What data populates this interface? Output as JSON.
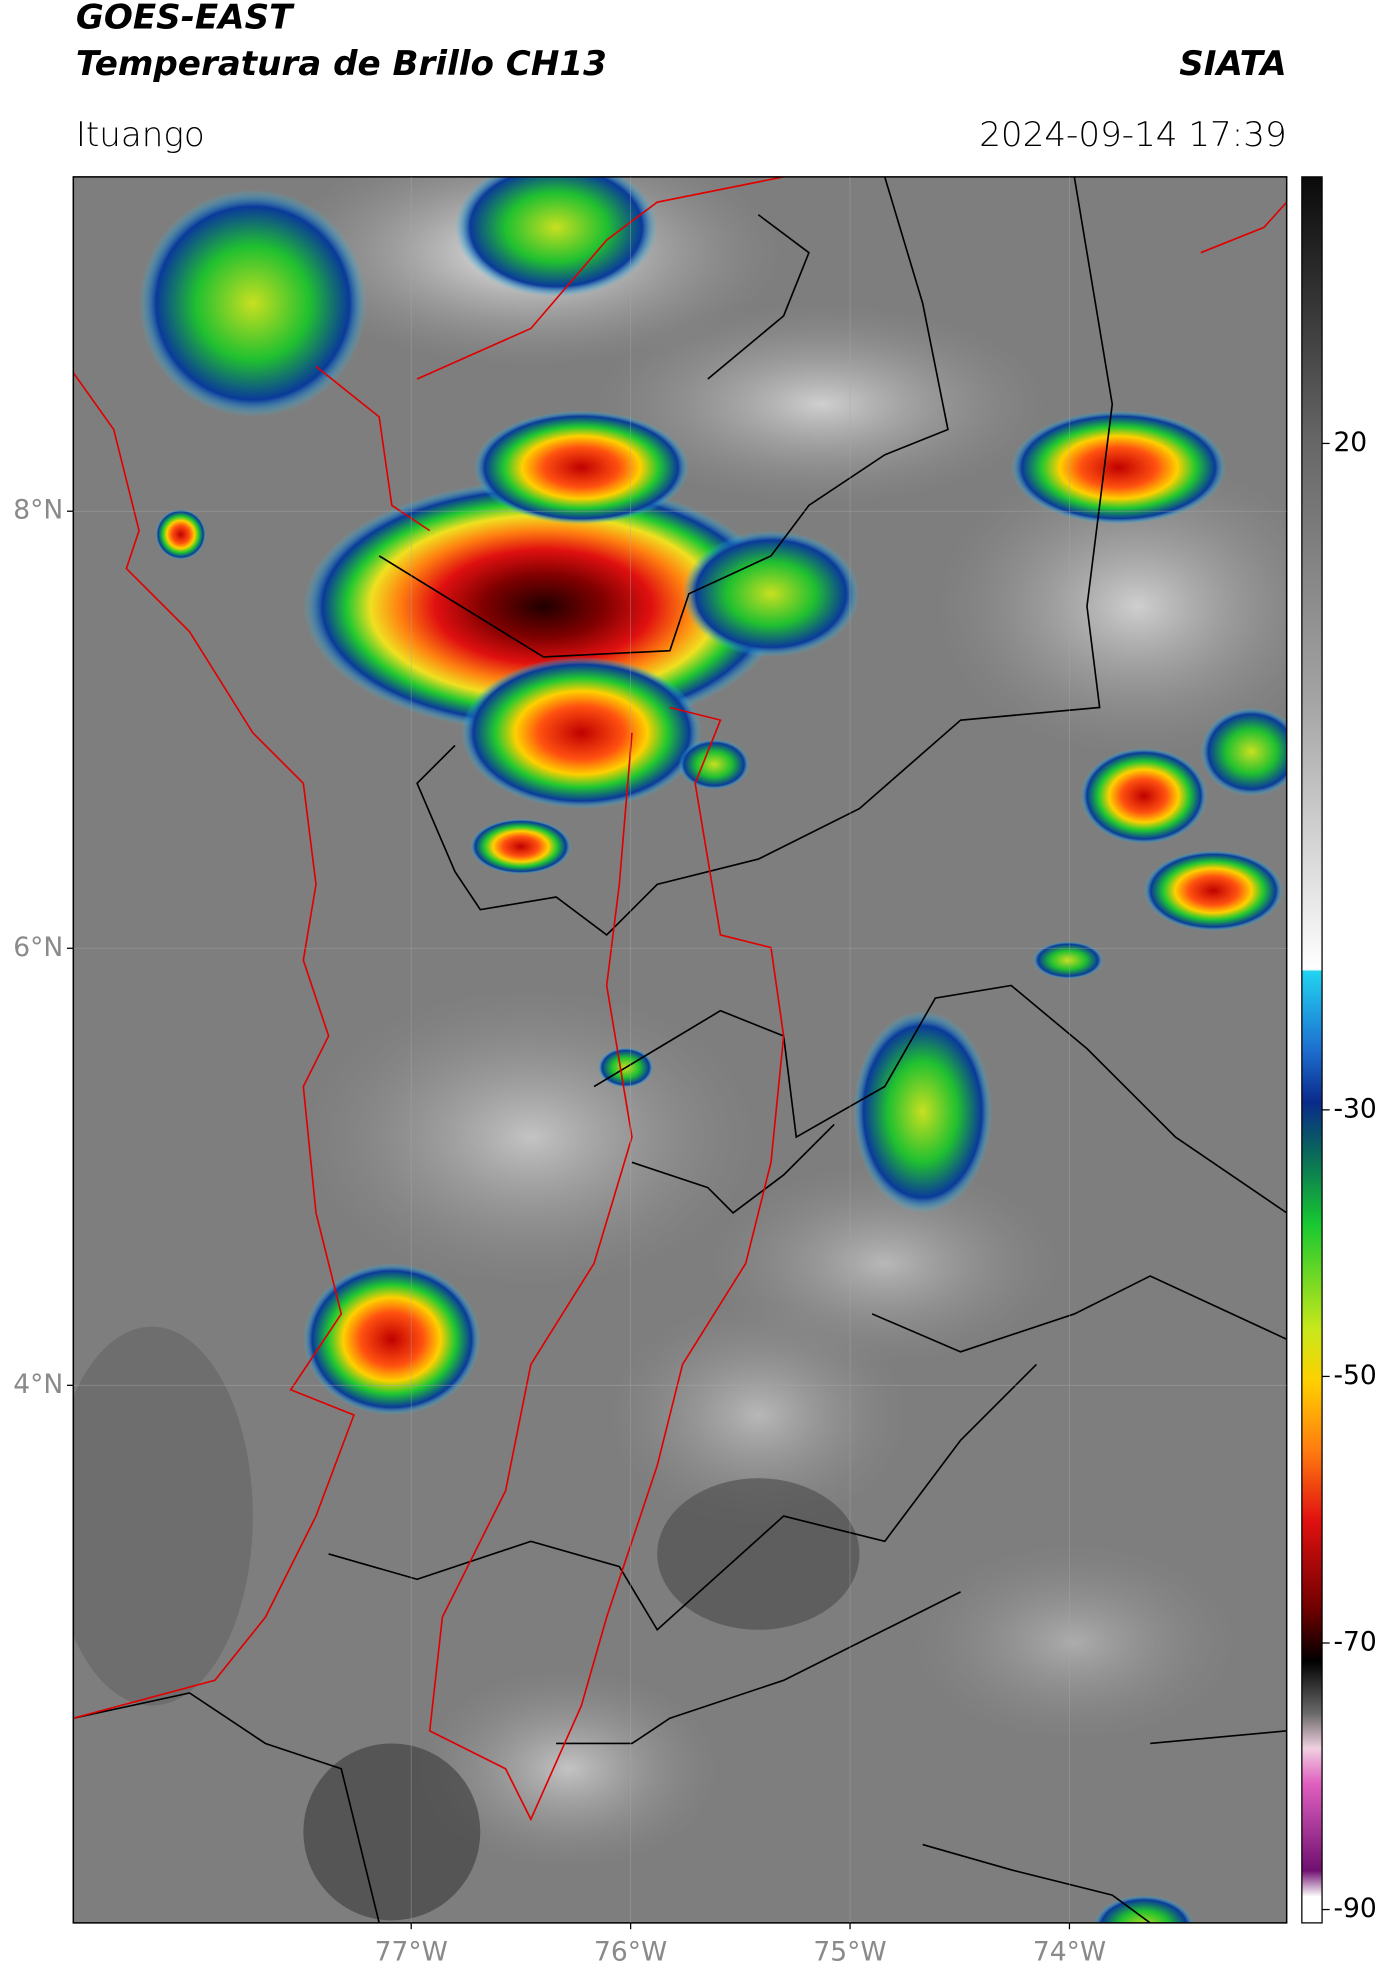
{
  "header": {
    "title": "GOES-EAST",
    "subtitle": "Temperatura de Brillo CH13",
    "agency": "SIATA",
    "location": "Ituango",
    "datetime": "2024-09-14 17:39"
  },
  "map": {
    "xlim": [
      -78.54,
      -73.01
    ],
    "ylim": [
      1.54,
      9.53
    ],
    "lat_ticks": [
      {
        "value": 8,
        "label": "8°N"
      },
      {
        "value": 6,
        "label": "6°N"
      },
      {
        "value": 4,
        "label": "4°N"
      }
    ],
    "lon_ticks": [
      {
        "value": -77,
        "label": "77°W"
      },
      {
        "value": -76,
        "label": "76°W"
      },
      {
        "value": -75,
        "label": "75°W"
      },
      {
        "value": -74,
        "label": "74°W"
      }
    ],
    "grid": true
  },
  "colorbar": {
    "range": [
      -91,
      40
    ],
    "ticks": [
      20,
      -30,
      -50,
      -70,
      -90
    ]
  }
}
